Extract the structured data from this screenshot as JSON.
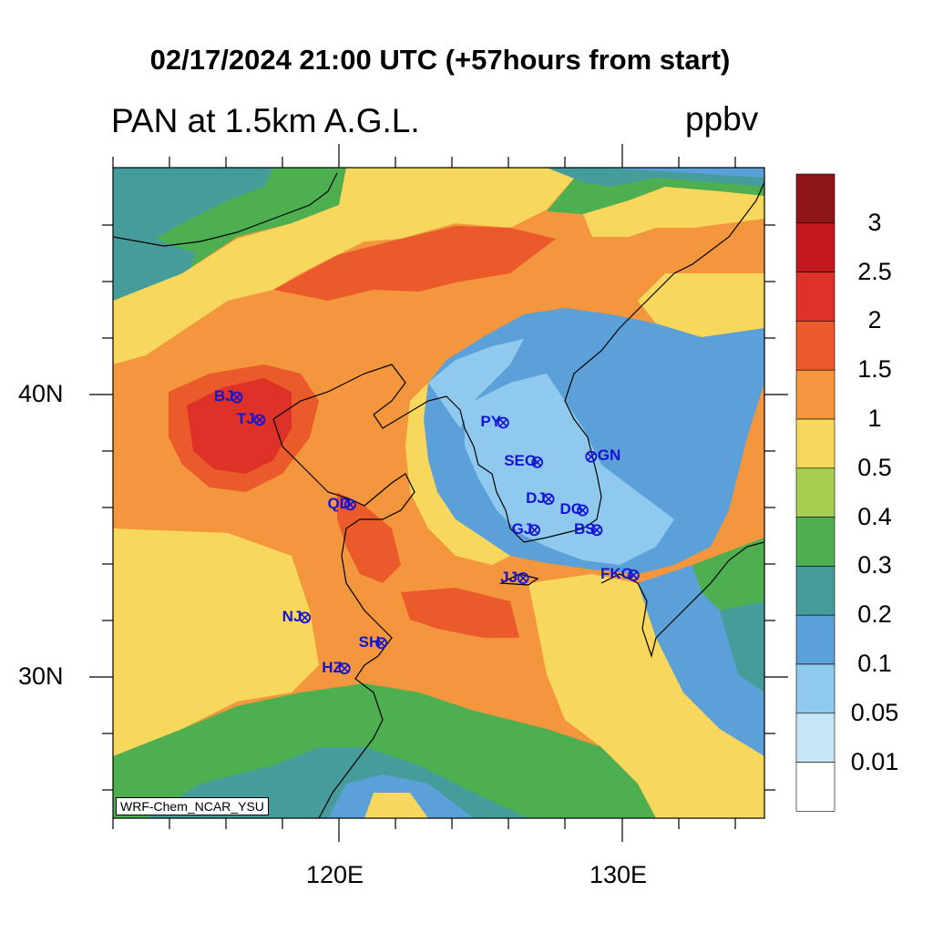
{
  "header": {
    "title": "02/17/2024 21:00 UTC (+57hours from start)",
    "subtitle": "PAN at 1.5km A.G.L.",
    "units": "ppbv"
  },
  "credit": "WRF-Chem_NCAR_YSU",
  "axes": {
    "x_ticks": [
      "120E",
      "130E"
    ],
    "y_ticks": [
      "40N",
      "30N"
    ]
  },
  "colorbar": {
    "labels": [
      "3",
      "2.5",
      "2",
      "1.5",
      "1",
      "0.5",
      "0.4",
      "0.3",
      "0.2",
      "0.1",
      "0.05",
      "0.01"
    ],
    "colors": [
      "#8e1518",
      "#c4181f",
      "#de3128",
      "#ea5a2b",
      "#f3963d",
      "#f7d85c",
      "#a6cf52",
      "#4daf4f",
      "#459c9a",
      "#5ba0d8",
      "#8fcaee",
      "#c7e7f8",
      "#ffffff"
    ]
  },
  "stations": [
    {
      "id": "BJ",
      "label": "BJ",
      "lon": 116.4,
      "lat": 39.9
    },
    {
      "id": "TJ",
      "label": "TJ",
      "lon": 117.2,
      "lat": 39.1
    },
    {
      "id": "PY",
      "label": "PY",
      "lon": 125.8,
      "lat": 39.0
    },
    {
      "id": "SEO",
      "label": "SEO",
      "lon": 127.0,
      "lat": 37.6
    },
    {
      "id": "GN",
      "label": "GN",
      "lon": 128.9,
      "lat": 37.8
    },
    {
      "id": "DJ",
      "label": "DJ",
      "lon": 127.4,
      "lat": 36.3
    },
    {
      "id": "DG",
      "label": "DG",
      "lon": 128.6,
      "lat": 35.9
    },
    {
      "id": "QD",
      "label": "QD",
      "lon": 120.4,
      "lat": 36.1
    },
    {
      "id": "GJ",
      "label": "GJ",
      "lon": 126.9,
      "lat": 35.2
    },
    {
      "id": "BS",
      "label": "BS",
      "lon": 129.1,
      "lat": 35.2
    },
    {
      "id": "JJ",
      "label": "JJ",
      "lon": 126.5,
      "lat": 33.5
    },
    {
      "id": "FK",
      "label": "FKO",
      "lon": 130.4,
      "lat": 33.6
    },
    {
      "id": "NJ",
      "label": "NJ",
      "lon": 118.8,
      "lat": 32.1
    },
    {
      "id": "SH",
      "label": "SH",
      "lon": 121.5,
      "lat": 31.2
    },
    {
      "id": "HZ",
      "label": "HZ",
      "lon": 120.2,
      "lat": 30.3
    }
  ]
}
